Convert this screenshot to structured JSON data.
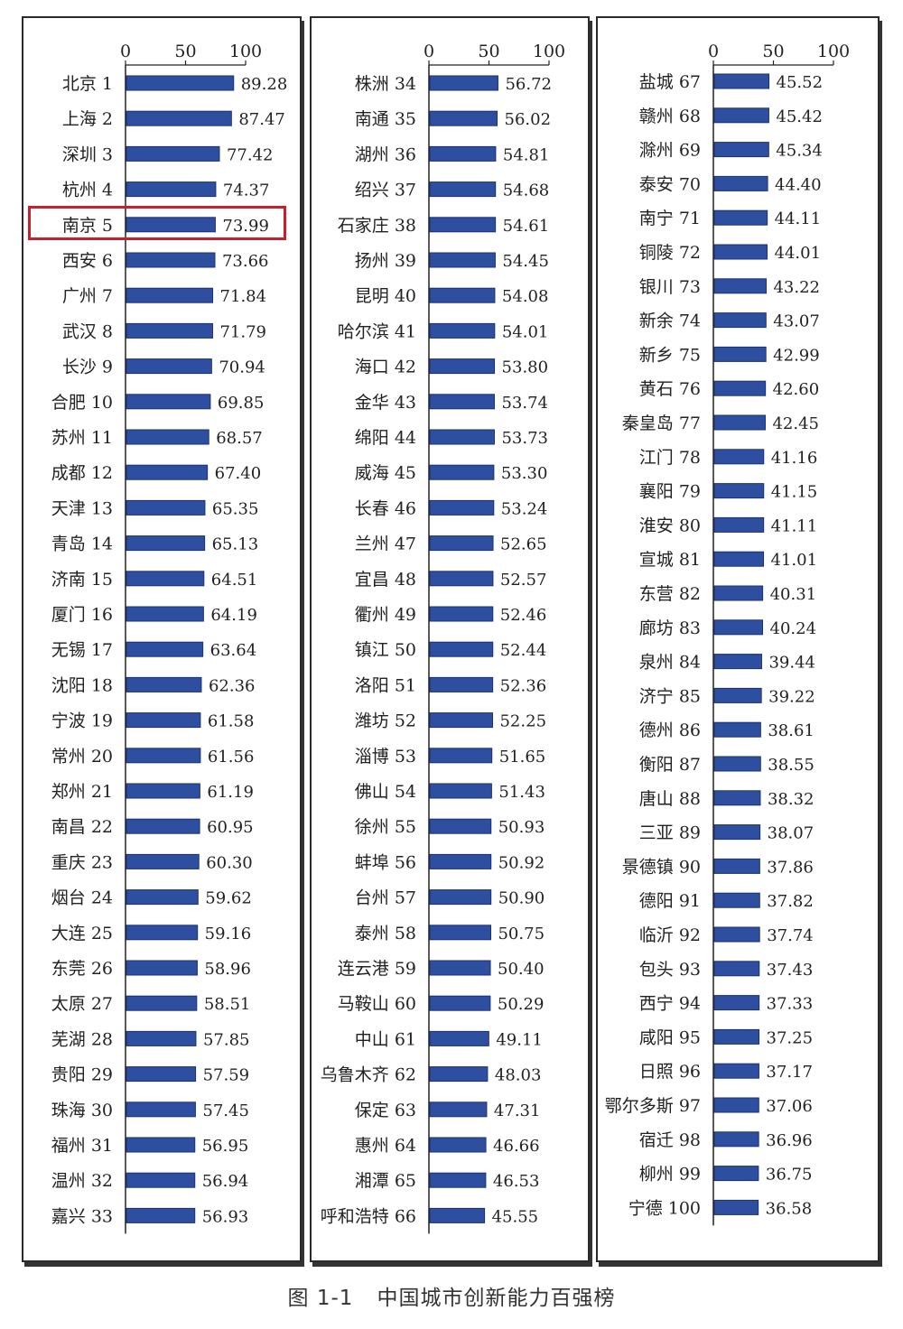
{
  "caption": {
    "figure_no": "图 1-1",
    "title": "中国城市创新能力百强榜"
  },
  "highlighted_city": "南京",
  "colors": {
    "bar": "#2e4f9f",
    "bar_edge": "#1b3275",
    "highlight": "#c8202a"
  },
  "chart_data": [
    {
      "type": "bar",
      "orientation": "horizontal",
      "xlim": [
        0,
        100
      ],
      "xticks": [
        "0",
        "50",
        "100"
      ],
      "categories": [
        "北京 1",
        "上海 2",
        "深圳 3",
        "杭州 4",
        "南京 5",
        "西安 6",
        "广州 7",
        "武汉 8",
        "长沙 9",
        "合肥 10",
        "苏州 11",
        "成都 12",
        "天津 13",
        "青岛 14",
        "济南 15",
        "厦门 16",
        "无锡 17",
        "沈阳 18",
        "宁波 19",
        "常州 20",
        "郑州 21",
        "南昌 22",
        "重庆 23",
        "烟台 24",
        "大连 25",
        "东莞 26",
        "太原 27",
        "芜湖 28",
        "贵阳 29",
        "珠海 30",
        "福州 31",
        "温州 32",
        "嘉兴 33"
      ],
      "values": [
        89.28,
        87.47,
        77.42,
        74.37,
        73.99,
        73.66,
        71.84,
        71.79,
        70.94,
        69.85,
        68.57,
        67.4,
        65.35,
        65.13,
        64.51,
        64.19,
        63.64,
        62.36,
        61.58,
        61.56,
        61.19,
        60.95,
        60.3,
        59.62,
        59.16,
        58.96,
        58.51,
        57.85,
        57.59,
        57.45,
        56.95,
        56.94,
        56.93
      ],
      "labels": [
        "89.28",
        "87.47",
        "77.42",
        "74.37",
        "73.99",
        "73.66",
        "71.84",
        "71.79",
        "70.94",
        "69.85",
        "68.57",
        "67.40",
        "65.35",
        "65.13",
        "64.51",
        "64.19",
        "63.64",
        "62.36",
        "61.58",
        "61.56",
        "61.19",
        "60.95",
        "60.30",
        "59.62",
        "59.16",
        "58.96",
        "58.51",
        "57.85",
        "57.59",
        "57.45",
        "56.95",
        "56.94",
        "56.93"
      ]
    },
    {
      "type": "bar",
      "orientation": "horizontal",
      "xlim": [
        0,
        100
      ],
      "xticks": [
        "0",
        "50",
        "100"
      ],
      "categories": [
        "株洲 34",
        "南通 35",
        "湖州 36",
        "绍兴 37",
        "石家庄 38",
        "扬州 39",
        "昆明 40",
        "哈尔滨 41",
        "海口 42",
        "金华 43",
        "绵阳 44",
        "威海 45",
        "长春 46",
        "兰州 47",
        "宜昌 48",
        "衢州 49",
        "镇江 50",
        "洛阳 51",
        "潍坊 52",
        "淄博 53",
        "佛山 54",
        "徐州 55",
        "蚌埠 56",
        "台州 57",
        "泰州 58",
        "连云港 59",
        "马鞍山 60",
        "中山 61",
        "乌鲁木齐 62",
        "保定 63",
        "惠州 64",
        "湘潭 65",
        "呼和浩特 66"
      ],
      "values": [
        56.72,
        56.02,
        54.81,
        54.68,
        54.61,
        54.45,
        54.08,
        54.01,
        53.8,
        53.74,
        53.73,
        53.3,
        53.24,
        52.65,
        52.57,
        52.46,
        52.44,
        52.36,
        52.25,
        51.65,
        51.43,
        50.93,
        50.92,
        50.9,
        50.75,
        50.4,
        50.29,
        49.11,
        48.03,
        47.31,
        46.66,
        46.53,
        45.55
      ],
      "labels": [
        "56.72",
        "56.02",
        "54.81",
        "54.68",
        "54.61",
        "54.45",
        "54.08",
        "54.01",
        "53.80",
        "53.74",
        "53.73",
        "53.30",
        "53.24",
        "52.65",
        "52.57",
        "52.46",
        "52.44",
        "52.36",
        "52.25",
        "51.65",
        "51.43",
        "50.93",
        "50.92",
        "50.90",
        "50.75",
        "50.40",
        "50.29",
        "49.11",
        "48.03",
        "47.31",
        "46.66",
        "46.53",
        "45.55"
      ]
    },
    {
      "type": "bar",
      "orientation": "horizontal",
      "xlim": [
        0,
        100
      ],
      "xticks": [
        "0",
        "50",
        "100"
      ],
      "categories": [
        "盐城 67",
        "赣州 68",
        "滁州 69",
        "泰安 70",
        "南宁 71",
        "铜陵 72",
        "银川 73",
        "新余 74",
        "新乡 75",
        "黄石 76",
        "秦皇岛 77",
        "江门 78",
        "襄阳 79",
        "淮安 80",
        "宣城 81",
        "东营 82",
        "廊坊 83",
        "泉州 84",
        "济宁 85",
        "德州 86",
        "衡阳 87",
        "唐山 88",
        "三亚 89",
        "景德镇 90",
        "德阳 91",
        "临沂 92",
        "包头 93",
        "西宁 94",
        "咸阳 95",
        "日照 96",
        "鄂尔多斯 97",
        "宿迁 98",
        "柳州 99",
        "宁德 100"
      ],
      "values": [
        45.52,
        45.42,
        45.34,
        44.4,
        44.11,
        44.01,
        43.22,
        43.07,
        42.99,
        42.6,
        42.45,
        41.16,
        41.15,
        41.11,
        41.01,
        40.31,
        40.24,
        39.44,
        39.22,
        38.61,
        38.55,
        38.32,
        38.07,
        37.86,
        37.82,
        37.74,
        37.43,
        37.33,
        37.25,
        37.17,
        37.06,
        36.96,
        36.75,
        36.58
      ],
      "labels": [
        "45.52",
        "45.42",
        "45.34",
        "44.40",
        "44.11",
        "44.01",
        "43.22",
        "43.07",
        "42.99",
        "42.60",
        "42.45",
        "41.16",
        "41.15",
        "41.11",
        "41.01",
        "40.31",
        "40.24",
        "39.44",
        "39.22",
        "38.61",
        "38.55",
        "38.32",
        "38.07",
        "37.86",
        "37.82",
        "37.74",
        "37.43",
        "37.33",
        "37.25",
        "37.17",
        "37.06",
        "36.96",
        "36.75",
        "36.58"
      ]
    }
  ]
}
